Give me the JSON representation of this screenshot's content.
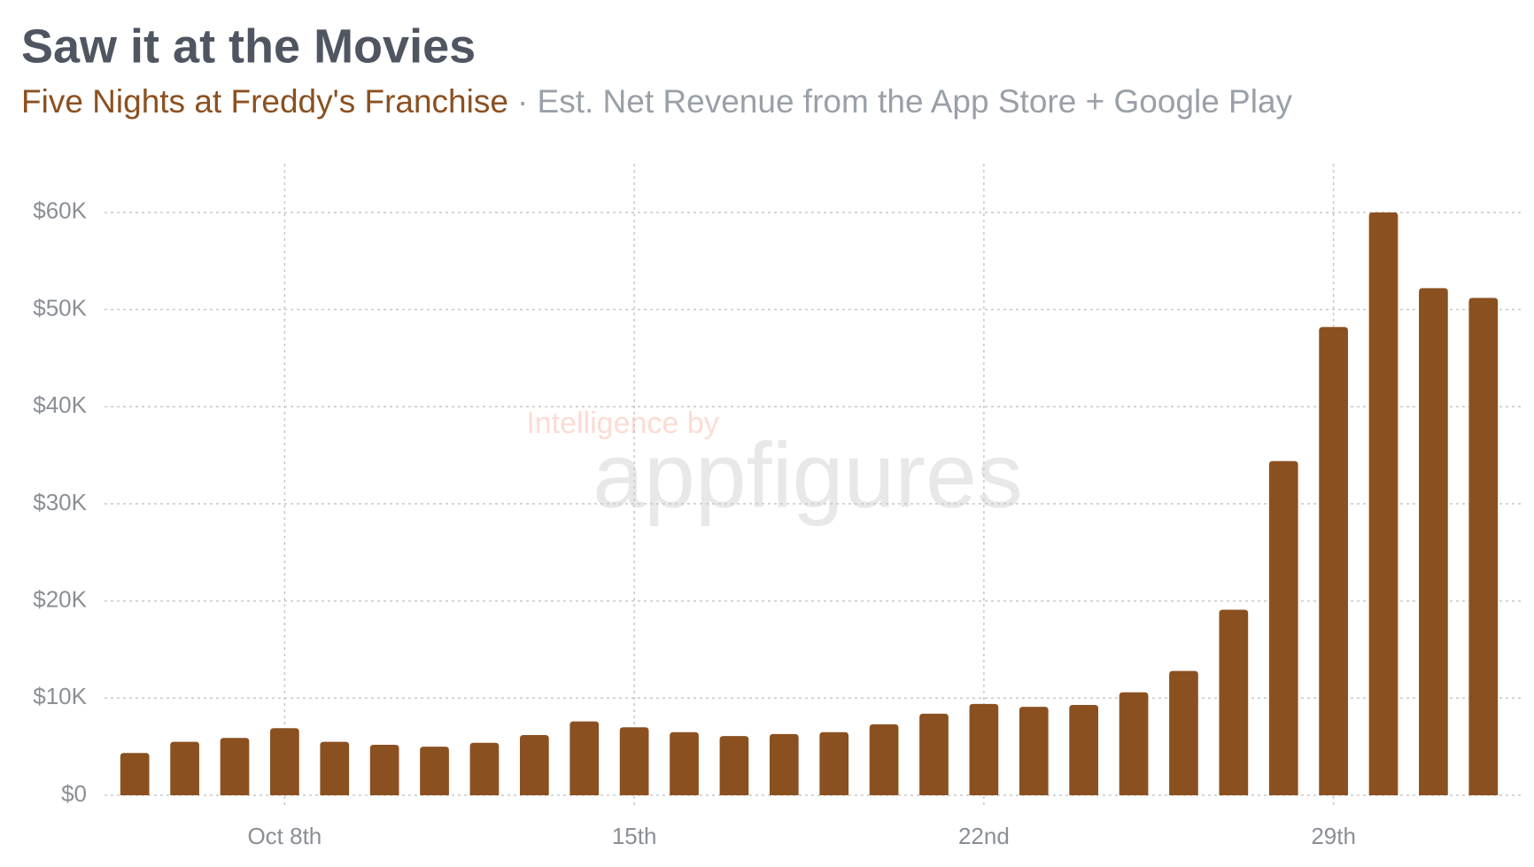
{
  "chart_data": {
    "type": "bar",
    "title": "Saw it at the Movies",
    "subtitle_highlight": "Five Nights at Freddy's Franchise",
    "subtitle": "· Est. Net Revenue from the App Store + Google Play",
    "watermark": [
      "Intelligence by",
      "appfigures"
    ],
    "categories": [
      null,
      null,
      null,
      "Oct 8th",
      null,
      null,
      null,
      null,
      null,
      null,
      "15th",
      null,
      null,
      null,
      null,
      null,
      null,
      "22nd",
      null,
      null,
      null,
      null,
      null,
      null,
      "29th",
      null,
      null,
      null
    ],
    "values": [
      4350,
      5500,
      5900,
      6900,
      5500,
      5200,
      5000,
      5400,
      6200,
      7600,
      7000,
      6500,
      6100,
      6300,
      6500,
      7300,
      8400,
      9400,
      9100,
      9300,
      10600,
      12800,
      19100,
      34400,
      48200,
      60000,
      52200,
      51200
    ],
    "color": "#8b5020",
    "ylim": [
      0,
      65000
    ],
    "yticks": [
      {
        "value": 0,
        "label": "$0"
      },
      {
        "value": 10000,
        "label": "$10K"
      },
      {
        "value": 20000,
        "label": "$20K"
      },
      {
        "value": 30000,
        "label": "$30K"
      },
      {
        "value": 40000,
        "label": "$40K"
      },
      {
        "value": 50000,
        "label": "$50K"
      },
      {
        "value": 60000,
        "label": "$60K"
      }
    ],
    "grid": true
  }
}
